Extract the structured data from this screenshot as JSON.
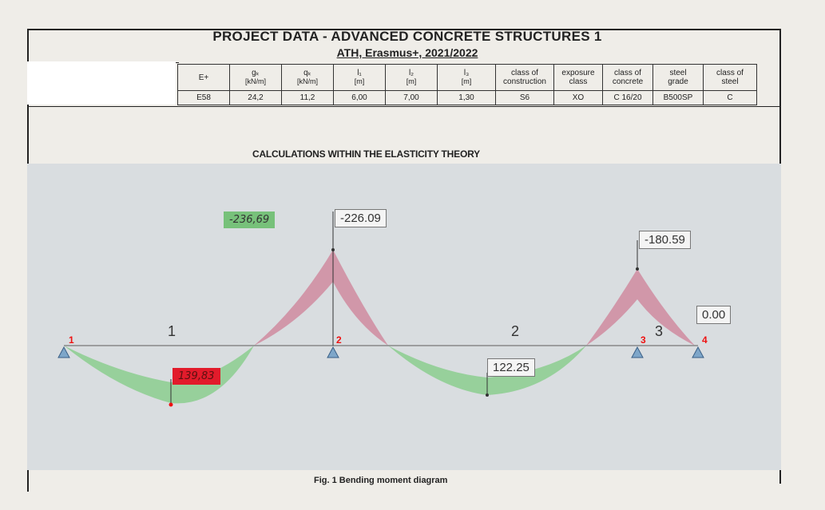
{
  "header": {
    "title": "PROJECT DATA - ADVANCED CONCRETE STRUCTURES 1",
    "subtitle": "ATH, Erasmus+, 2021/2022"
  },
  "table": {
    "row_label": "E+",
    "columns": [
      {
        "sym": "gₖ",
        "unit": "[kN/m]",
        "value": "24,2"
      },
      {
        "sym": "qₖ",
        "unit": "[kN/m]",
        "value": "11,2"
      },
      {
        "sym": "l₁",
        "unit": "[m]",
        "value": "6,00"
      },
      {
        "sym": "l₂",
        "unit": "[m]",
        "value": "7,00"
      },
      {
        "sym": "l₃",
        "unit": "[m]",
        "value": "1,30"
      },
      {
        "l1": "class of",
        "l2": "construction",
        "value": "S6"
      },
      {
        "l1": "exposure",
        "l2": "class",
        "value": "XO"
      },
      {
        "l1": "class of",
        "l2": "concrete",
        "value": "C 16/20"
      },
      {
        "l1": "steel",
        "l2": "grade",
        "value": "B500SP"
      },
      {
        "l1": "class of",
        "l2": "steel",
        "value": "C"
      }
    ],
    "row_id": "E58"
  },
  "calc_title": "CALCULATIONS WITHIN THE ELASTICITY THEORY",
  "diagram": {
    "moment_labels": [
      "-226.09",
      "-180.59",
      "0.00",
      "122.25"
    ],
    "handwritten": {
      "support_moment": "-236,69",
      "span_moment": "139,83"
    },
    "span_labels": [
      "1",
      "2",
      "3"
    ],
    "node_labels": [
      "1",
      "2",
      "3",
      "4"
    ],
    "colors": {
      "hogging": "#cf8fa3",
      "sagging": "#8fce94",
      "handwritten_green": "#77c17a",
      "handwritten_red": "#e21b2b"
    }
  },
  "caption": "Fig. 1 Bending moment diagram"
}
